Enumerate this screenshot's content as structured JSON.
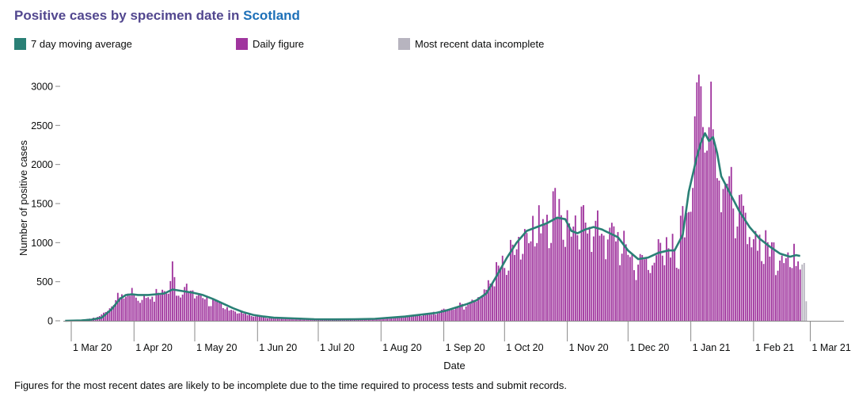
{
  "header": {
    "title_prefix": "Positive cases by specimen date in ",
    "title_location": "Scotland"
  },
  "legend": [
    {
      "label": "7 day moving average",
      "color": "#2a8076"
    },
    {
      "label": "Daily figure",
      "color": "#a0359e"
    },
    {
      "label": "Most recent data incomplete",
      "color": "#b7b4bf"
    }
  ],
  "footnote": "Figures for the most recent dates are likely to be incomplete due to the time required to process tests and submit records.",
  "chart_data": {
    "type": "bar",
    "xlabel": "Date",
    "ylabel": "Number of positive cases",
    "ylim": [
      0,
      3300
    ],
    "yticks": [
      0,
      500,
      1000,
      1500,
      2000,
      2500,
      3000
    ],
    "xtick_labels": [
      "1 Mar 20",
      "1 Apr 20",
      "1 May 20",
      "1 Jun 20",
      "1 Jul 20",
      "1 Aug 20",
      "1 Sep 20",
      "1 Oct 20",
      "1 Nov 20",
      "1 Dec 20",
      "1 Jan 21",
      "1 Feb 21",
      "1 Mar 21"
    ],
    "xtick_days": [
      0,
      31,
      61,
      92,
      122,
      153,
      184,
      214,
      245,
      275,
      306,
      337,
      365
    ],
    "start_date": "2020-03-01",
    "grid": false,
    "legend_position": "top",
    "series": [
      {
        "name": "Daily figure",
        "color": "#a0359e",
        "profile": [
          [
            -3,
            0
          ],
          [
            0,
            3
          ],
          [
            5,
            10
          ],
          [
            10,
            30
          ],
          [
            15,
            80
          ],
          [
            20,
            200
          ],
          [
            24,
            340
          ],
          [
            28,
            380
          ],
          [
            32,
            330
          ],
          [
            36,
            300
          ],
          [
            40,
            340
          ],
          [
            44,
            370
          ],
          [
            48,
            420
          ],
          [
            50,
            760
          ],
          [
            52,
            380
          ],
          [
            56,
            410
          ],
          [
            60,
            390
          ],
          [
            65,
            320
          ],
          [
            70,
            250
          ],
          [
            75,
            190
          ],
          [
            80,
            140
          ],
          [
            85,
            100
          ],
          [
            90,
            70
          ],
          [
            95,
            50
          ],
          [
            100,
            40
          ],
          [
            110,
            30
          ],
          [
            120,
            20
          ],
          [
            130,
            18
          ],
          [
            140,
            20
          ],
          [
            150,
            25
          ],
          [
            155,
            40
          ],
          [
            160,
            50
          ],
          [
            165,
            55
          ],
          [
            170,
            65
          ],
          [
            175,
            85
          ],
          [
            180,
            100
          ],
          [
            184,
            140
          ],
          [
            190,
            180
          ],
          [
            195,
            220
          ],
          [
            200,
            300
          ],
          [
            205,
            450
          ],
          [
            210,
            650
          ],
          [
            215,
            800
          ],
          [
            220,
            1050
          ],
          [
            225,
            1200
          ],
          [
            230,
            1250
          ],
          [
            236,
            1450
          ],
          [
            240,
            1600
          ],
          [
            244,
            1350
          ],
          [
            248,
            1150
          ],
          [
            252,
            1250
          ],
          [
            256,
            1350
          ],
          [
            260,
            1200
          ],
          [
            265,
            1150
          ],
          [
            270,
            1100
          ],
          [
            275,
            900
          ],
          [
            280,
            750
          ],
          [
            285,
            800
          ],
          [
            290,
            900
          ],
          [
            295,
            950
          ],
          [
            300,
            1000
          ],
          [
            303,
            1200
          ],
          [
            306,
            1800
          ],
          [
            308,
            2900
          ],
          [
            310,
            3150
          ],
          [
            312,
            2400
          ],
          [
            314,
            2800
          ],
          [
            316,
            3060
          ],
          [
            318,
            2300
          ],
          [
            320,
            2200
          ],
          [
            324,
            1800
          ],
          [
            328,
            1550
          ],
          [
            332,
            1300
          ],
          [
            336,
            1150
          ],
          [
            340,
            1050
          ],
          [
            345,
            950
          ],
          [
            350,
            900
          ],
          [
            355,
            870
          ],
          [
            358,
            830
          ],
          [
            360,
            780
          ]
        ],
        "spikes": [
          [
            50,
            760
          ],
          [
            310,
            3150
          ],
          [
            316,
            3060
          ],
          [
            311,
            3000
          ],
          [
            317,
            2450
          ],
          [
            239,
            1700
          ],
          [
            253,
            1480
          ]
        ]
      },
      {
        "name": "7 day moving average",
        "color": "#2a8076",
        "points": [
          [
            -3,
            0
          ],
          [
            5,
            5
          ],
          [
            10,
            15
          ],
          [
            15,
            40
          ],
          [
            20,
            150
          ],
          [
            24,
            280
          ],
          [
            27,
            330
          ],
          [
            30,
            340
          ],
          [
            33,
            330
          ],
          [
            38,
            330
          ],
          [
            42,
            340
          ],
          [
            46,
            350
          ],
          [
            50,
            400
          ],
          [
            55,
            380
          ],
          [
            60,
            360
          ],
          [
            65,
            330
          ],
          [
            70,
            280
          ],
          [
            75,
            220
          ],
          [
            80,
            160
          ],
          [
            85,
            110
          ],
          [
            90,
            75
          ],
          [
            95,
            55
          ],
          [
            100,
            40
          ],
          [
            110,
            30
          ],
          [
            120,
            20
          ],
          [
            130,
            18
          ],
          [
            140,
            20
          ],
          [
            150,
            25
          ],
          [
            155,
            35
          ],
          [
            160,
            45
          ],
          [
            165,
            55
          ],
          [
            170,
            70
          ],
          [
            175,
            85
          ],
          [
            180,
            100
          ],
          [
            185,
            130
          ],
          [
            190,
            170
          ],
          [
            195,
            210
          ],
          [
            200,
            260
          ],
          [
            205,
            350
          ],
          [
            210,
            570
          ],
          [
            215,
            800
          ],
          [
            220,
            1000
          ],
          [
            225,
            1150
          ],
          [
            230,
            1200
          ],
          [
            235,
            1250
          ],
          [
            240,
            1320
          ],
          [
            244,
            1300
          ],
          [
            247,
            1150
          ],
          [
            250,
            1120
          ],
          [
            254,
            1170
          ],
          [
            258,
            1200
          ],
          [
            262,
            1170
          ],
          [
            266,
            1120
          ],
          [
            270,
            1070
          ],
          [
            275,
            900
          ],
          [
            280,
            790
          ],
          [
            285,
            810
          ],
          [
            290,
            870
          ],
          [
            295,
            900
          ],
          [
            298,
            900
          ],
          [
            302,
            1100
          ],
          [
            305,
            1650
          ],
          [
            309,
            2100
          ],
          [
            311,
            2280
          ],
          [
            313,
            2400
          ],
          [
            315,
            2300
          ],
          [
            317,
            2350
          ],
          [
            319,
            2150
          ],
          [
            321,
            1850
          ],
          [
            325,
            1650
          ],
          [
            330,
            1400
          ],
          [
            335,
            1200
          ],
          [
            340,
            1050
          ],
          [
            345,
            950
          ],
          [
            350,
            860
          ],
          [
            355,
            820
          ],
          [
            358,
            840
          ],
          [
            360,
            830
          ]
        ]
      },
      {
        "name": "Most recent data incomplete",
        "color": "#b7b4bf",
        "bars": [
          [
            361,
            720
          ],
          [
            362,
            740
          ],
          [
            363,
            250
          ]
        ]
      }
    ]
  }
}
